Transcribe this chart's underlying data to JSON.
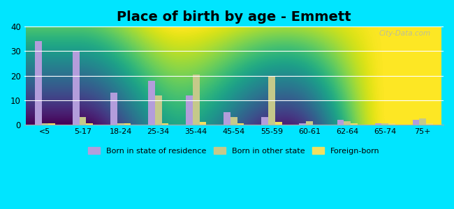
{
  "title": "Place of birth by age - Emmett",
  "categories": [
    "<5",
    "5-17",
    "18-24",
    "25-34",
    "35-44",
    "45-54",
    "55-59",
    "60-61",
    "62-64",
    "65-74",
    "75+"
  ],
  "born_in_state": [
    34,
    30,
    13,
    18,
    12,
    5,
    3,
    0.5,
    2,
    0.5,
    2
  ],
  "born_other_state": [
    0.5,
    3,
    0.5,
    12,
    20.5,
    3,
    19.5,
    1.5,
    1.5,
    0.5,
    2.5
  ],
  "foreign_born": [
    0.5,
    0.5,
    0.5,
    0.5,
    1,
    0.5,
    1,
    0,
    0.5,
    0.5,
    0.5
  ],
  "color_state": "#b39ddb",
  "color_other": "#c5c98a",
  "color_foreign": "#f0e060",
  "ylim": [
    0,
    40
  ],
  "yticks": [
    0,
    10,
    20,
    30,
    40
  ],
  "outer_bg": "#00e5ff",
  "title_fontsize": 14,
  "bar_width": 0.18,
  "legend_labels": [
    "Born in state of residence",
    "Born in other state",
    "Foreign-born"
  ],
  "watermark": "City-Data.com"
}
